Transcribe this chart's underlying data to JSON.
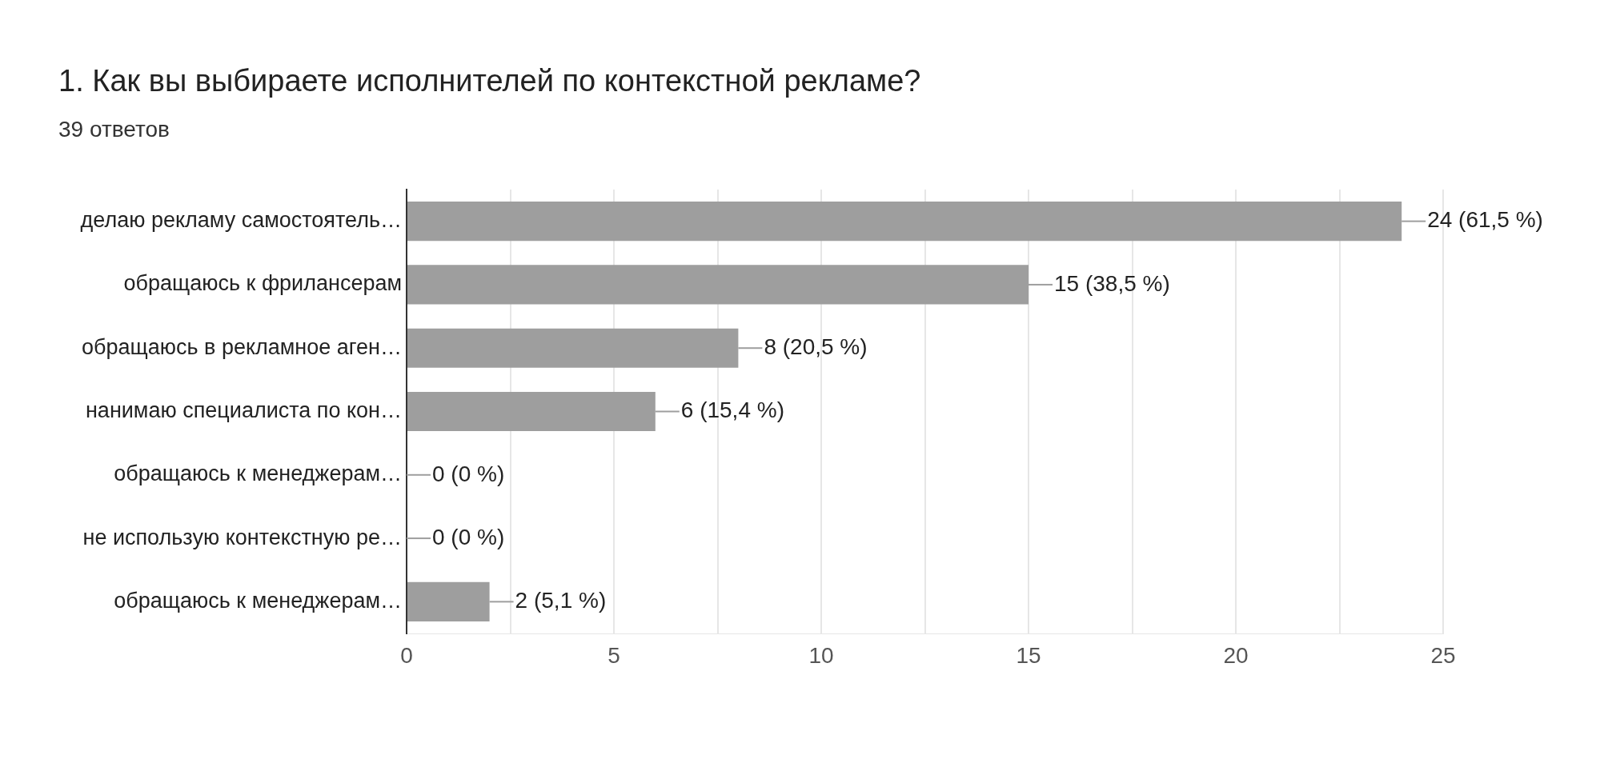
{
  "chart_data": {
    "type": "bar",
    "orientation": "horizontal",
    "title": "1. Как вы выбираете исполнителей по контекстной рекламе?",
    "subtitle": "39 ответов",
    "categories": [
      "делаю рекламу самостоятель…",
      "обращаюсь к фрилансерам",
      "обращаюсь в рекламное аген…",
      "нанимаю специалиста по кон…",
      "обращаюсь к менеджерам…",
      "не использую контекстную ре…",
      "обращаюсь к менеджерам…"
    ],
    "values": [
      24,
      15,
      8,
      6,
      0,
      0,
      2
    ],
    "value_labels": [
      "24 (61,5 %)",
      "15 (38,5 %)",
      "8 (20,5 %)",
      "6 (15,4 %)",
      "0 (0 %)",
      "0 (0 %)",
      "2 (5,1 %)"
    ],
    "color": "#9e9e9e",
    "xlim": [
      0,
      25
    ],
    "xticks": [
      0,
      {
        "value": 2.5,
        "label": null
      },
      5,
      {
        "value": 7.5,
        "label": null
      },
      10,
      {
        "value": 12.5,
        "label": null
      },
      15,
      {
        "value": 17.5,
        "label": null
      },
      20,
      {
        "value": 22.5,
        "label": null
      },
      25
    ],
    "grid": "x",
    "legend": false
  }
}
